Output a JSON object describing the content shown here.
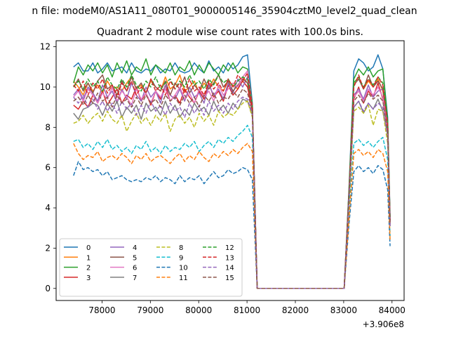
{
  "figure": {
    "suptitle": "n file: modeM0/AS1A11_080T01_9000005146_35904cztM0_level2_quad_clean",
    "offset_label": "+3.906e8"
  },
  "chart_data": {
    "type": "line",
    "title": "Quadrant 2 module wise count rates with 100.0s bins.",
    "xlabel": "",
    "ylabel": "",
    "x_offset": 390600000,
    "xlim": [
      77050,
      84250
    ],
    "ylim": [
      -0.6,
      12.3
    ],
    "xticks": [
      78000,
      79000,
      80000,
      81000,
      82000,
      83000,
      84000
    ],
    "xtick_labels": [
      "78000",
      "79000",
      "80000",
      "81000",
      "82000",
      "83000",
      "84000"
    ],
    "yticks": [
      0,
      2,
      4,
      6,
      8,
      10,
      12
    ],
    "ytick_labels": [
      "0",
      "2",
      "4",
      "6",
      "8",
      "10",
      "12"
    ],
    "grid": false,
    "legend_placement": "lower-left",
    "x": [
      77410,
      77510,
      77610,
      77710,
      77810,
      77910,
      78010,
      78110,
      78210,
      78310,
      78410,
      78510,
      78610,
      78710,
      78810,
      78910,
      79010,
      79110,
      79210,
      79310,
      79410,
      79510,
      79610,
      79710,
      79810,
      79910,
      80010,
      80110,
      80210,
      80310,
      80410,
      80510,
      80610,
      80710,
      80810,
      80910,
      81010,
      81110,
      81210,
      81310,
      81410,
      81510,
      81610,
      81710,
      81810,
      81910,
      82010,
      82110,
      82210,
      82310,
      82410,
      82510,
      82610,
      82710,
      82810,
      82910,
      83010,
      83110,
      83210,
      83310,
      83410,
      83510,
      83610,
      83710,
      83810,
      83910,
      83960
    ],
    "series": [
      {
        "name": "0",
        "color": "#1f77b4",
        "dash": "solid",
        "values": [
          11.0,
          11.2,
          10.8,
          10.8,
          11.2,
          10.7,
          10.9,
          11.2,
          10.8,
          10.9,
          11.0,
          10.7,
          11.2,
          10.8,
          10.7,
          10.9,
          10.8,
          11.1,
          10.7,
          10.9,
          10.8,
          11.2,
          10.8,
          10.7,
          10.8,
          11.2,
          10.9,
          10.7,
          11.3,
          10.8,
          11.0,
          10.7,
          11.2,
          10.9,
          11.1,
          11.5,
          11.6,
          9.2,
          0,
          0,
          0,
          0,
          0,
          0,
          0,
          0,
          0,
          0,
          0,
          0,
          0,
          0,
          0,
          0,
          0,
          0,
          0,
          5.0,
          10.8,
          11.4,
          11.2,
          10.8,
          11.0,
          11.6,
          10.9,
          8.5,
          3.6
        ]
      },
      {
        "name": "1",
        "color": "#ff7f0e",
        "dash": "solid",
        "values": [
          10.3,
          10.0,
          9.6,
          10.2,
          9.8,
          10.1,
          9.7,
          10.3,
          9.9,
          10.0,
          9.8,
          10.2,
          10.5,
          9.9,
          10.1,
          9.7,
          10.3,
          10.0,
          9.8,
          10.5,
          9.9,
          10.1,
          10.6,
          9.8,
          10.0,
          10.3,
          9.7,
          10.2,
          9.9,
          10.4,
          10.0,
          9.8,
          10.3,
          10.1,
          9.9,
          10.5,
          10.2,
          9.0,
          0,
          0,
          0,
          0,
          0,
          0,
          0,
          0,
          0,
          0,
          0,
          0,
          0,
          0,
          0,
          0,
          0,
          0,
          0,
          4.8,
          10.2,
          10.5,
          9.9,
          10.3,
          10.0,
          10.4,
          9.8,
          8.0,
          3.4
        ]
      },
      {
        "name": "2",
        "color": "#2ca02c",
        "dash": "solid",
        "values": [
          10.2,
          11.0,
          10.6,
          11.1,
          10.8,
          11.2,
          10.7,
          11.1,
          10.5,
          11.2,
          10.7,
          11.3,
          10.6,
          11.0,
          10.8,
          11.4,
          10.6,
          11.1,
          10.9,
          10.7,
          11.2,
          10.6,
          11.0,
          10.8,
          11.3,
          10.6,
          11.1,
          10.7,
          11.2,
          10.9,
          10.6,
          11.1,
          10.8,
          11.2,
          10.7,
          11.0,
          10.9,
          9.1,
          0,
          0,
          0,
          0,
          0,
          0,
          0,
          0,
          0,
          0,
          0,
          0,
          0,
          0,
          0,
          0,
          0,
          0,
          0,
          4.9,
          10.4,
          10.9,
          10.6,
          11.0,
          10.5,
          10.8,
          10.9,
          8.3,
          3.5
        ]
      },
      {
        "name": "3",
        "color": "#d62728",
        "dash": "solid",
        "values": [
          9.1,
          8.9,
          9.3,
          9.0,
          9.6,
          9.2,
          9.8,
          9.1,
          9.5,
          9.9,
          9.2,
          9.6,
          9.4,
          10.0,
          9.3,
          9.7,
          9.1,
          9.8,
          9.4,
          10.1,
          9.3,
          9.6,
          9.2,
          9.9,
          9.5,
          9.2,
          9.8,
          9.4,
          10.2,
          9.5,
          9.8,
          9.3,
          10.1,
          9.6,
          9.9,
          10.3,
          10.0,
          8.8,
          0,
          0,
          0,
          0,
          0,
          0,
          0,
          0,
          0,
          0,
          0,
          0,
          0,
          0,
          0,
          0,
          0,
          0,
          0,
          4.6,
          9.4,
          10.0,
          9.2,
          9.8,
          9.5,
          10.2,
          9.4,
          7.8,
          3.2
        ]
      },
      {
        "name": "4",
        "color": "#9467bd",
        "dash": "solid",
        "values": [
          9.6,
          9.9,
          9.4,
          10.0,
          9.7,
          9.3,
          10.1,
          9.5,
          9.8,
          9.2,
          9.9,
          9.4,
          10.2,
          9.6,
          9.3,
          10.0,
          9.5,
          9.8,
          9.2,
          10.1,
          9.6,
          9.4,
          9.9,
          9.3,
          10.0,
          9.5,
          9.7,
          9.2,
          10.1,
          9.6,
          9.9,
          9.4,
          10.2,
          9.7,
          10.4,
          10.0,
          10.5,
          9.0,
          0,
          0,
          0,
          0,
          0,
          0,
          0,
          0,
          0,
          0,
          0,
          0,
          0,
          0,
          0,
          0,
          0,
          0,
          0,
          4.7,
          9.6,
          9.9,
          9.4,
          10.1,
          9.5,
          9.8,
          9.9,
          8.0,
          3.3
        ]
      },
      {
        "name": "5",
        "color": "#8c564b",
        "dash": "solid",
        "values": [
          10.0,
          10.4,
          9.8,
          10.2,
          9.7,
          10.3,
          10.6,
          9.9,
          10.1,
          9.6,
          10.3,
          9.8,
          10.5,
          9.9,
          10.2,
          9.7,
          10.4,
          10.0,
          9.8,
          10.3,
          9.6,
          10.2,
          9.9,
          10.5,
          9.7,
          10.1,
          9.8,
          10.4,
          9.9,
          10.2,
          10.6,
          10.0,
          10.3,
          9.8,
          10.1,
          10.4,
          10.2,
          9.1,
          0,
          0,
          0,
          0,
          0,
          0,
          0,
          0,
          0,
          0,
          0,
          0,
          0,
          0,
          0,
          0,
          0,
          0,
          0,
          4.8,
          10.1,
          10.4,
          9.9,
          10.6,
          10.0,
          10.3,
          9.9,
          8.2,
          3.4
        ]
      },
      {
        "name": "6",
        "color": "#e377c2",
        "dash": "solid",
        "values": [
          9.5,
          9.8,
          9.3,
          9.9,
          9.6,
          9.2,
          9.7,
          9.4,
          10.0,
          9.3,
          9.8,
          9.5,
          9.1,
          9.9,
          9.4,
          9.7,
          9.2,
          9.8,
          9.5,
          9.9,
          9.3,
          9.6,
          10.0,
          9.4,
          9.7,
          9.2,
          9.9,
          9.5,
          9.8,
          9.3,
          10.1,
          9.6,
          9.9,
          10.2,
          10.0,
          10.5,
          10.8,
          9.0,
          0,
          0,
          0,
          0,
          0,
          0,
          0,
          0,
          0,
          0,
          0,
          0,
          0,
          0,
          0,
          0,
          0,
          0,
          0,
          4.6,
          9.5,
          9.8,
          9.3,
          9.9,
          9.6,
          10.0,
          9.5,
          7.9,
          3.3
        ]
      },
      {
        "name": "7",
        "color": "#7f7f7f",
        "dash": "solid",
        "values": [
          8.7,
          8.4,
          8.9,
          9.0,
          9.2,
          9.1,
          8.6,
          9.2,
          8.8,
          9.3,
          8.5,
          9.0,
          8.7,
          9.1,
          8.4,
          9.2,
          8.8,
          9.0,
          8.6,
          9.3,
          8.7,
          9.1,
          8.5,
          8.9,
          8.6,
          9.2,
          8.8,
          9.0,
          8.6,
          9.3,
          8.8,
          9.1,
          8.7,
          9.2,
          8.9,
          9.4,
          9.3,
          8.6,
          0,
          0,
          0,
          0,
          0,
          0,
          0,
          0,
          0,
          0,
          0,
          0,
          0,
          0,
          0,
          0,
          0,
          0,
          0,
          4.4,
          9.0,
          9.3,
          8.7,
          9.2,
          8.9,
          9.4,
          8.8,
          7.6,
          3.1
        ]
      },
      {
        "name": "8",
        "color": "#bcbd22",
        "dash": "dashed",
        "values": [
          8.2,
          8.3,
          8.6,
          8.2,
          8.5,
          8.7,
          8.3,
          8.8,
          8.4,
          8.2,
          8.6,
          7.8,
          8.3,
          8.7,
          8.2,
          8.5,
          8.1,
          8.6,
          8.3,
          8.7,
          7.8,
          8.4,
          8.6,
          8.2,
          8.5,
          8.0,
          8.7,
          8.3,
          8.6,
          8.1,
          8.8,
          8.5,
          8.7,
          8.6,
          8.9,
          9.2,
          9.3,
          8.5,
          0,
          0,
          0,
          0,
          0,
          0,
          0,
          0,
          0,
          0,
          0,
          0,
          0,
          0,
          0,
          0,
          0,
          0,
          0,
          4.2,
          8.8,
          9.0,
          8.7,
          9.1,
          8.1,
          8.9,
          8.8,
          7.2,
          3.0
        ]
      },
      {
        "name": "9",
        "color": "#17becf",
        "dash": "dashed",
        "values": [
          7.3,
          7.4,
          7.0,
          7.2,
          6.9,
          7.3,
          7.0,
          7.4,
          6.9,
          7.1,
          6.8,
          7.0,
          6.7,
          7.1,
          6.9,
          7.3,
          6.8,
          7.0,
          6.7,
          7.1,
          6.8,
          7.0,
          6.9,
          7.2,
          7.0,
          7.3,
          6.8,
          7.1,
          7.3,
          7.0,
          7.4,
          7.2,
          7.5,
          7.3,
          7.6,
          7.8,
          8.1,
          7.5,
          0,
          0,
          0,
          0,
          0,
          0,
          0,
          0,
          0,
          0,
          0,
          0,
          0,
          0,
          0,
          0,
          0,
          0,
          0,
          3.8,
          7.2,
          7.4,
          7.1,
          7.3,
          7.0,
          7.3,
          7.5,
          6.4,
          2.6
        ]
      },
      {
        "name": "10",
        "color": "#1f77b4",
        "dash": "dashed",
        "values": [
          5.6,
          6.3,
          5.9,
          6.0,
          5.8,
          5.9,
          5.6,
          5.8,
          5.4,
          5.5,
          5.6,
          5.4,
          5.3,
          5.4,
          5.3,
          5.5,
          5.4,
          5.6,
          5.3,
          5.5,
          5.4,
          5.2,
          5.6,
          5.3,
          5.5,
          5.4,
          5.6,
          5.2,
          5.5,
          5.8,
          5.5,
          5.6,
          5.9,
          5.7,
          5.8,
          6.0,
          5.9,
          5.4,
          0,
          0,
          0,
          0,
          0,
          0,
          0,
          0,
          0,
          0,
          0,
          0,
          0,
          0,
          0,
          0,
          0,
          0,
          0,
          3.2,
          5.8,
          6.1,
          5.8,
          6.0,
          5.7,
          6.1,
          5.9,
          4.9,
          2.1
        ]
      },
      {
        "name": "11",
        "color": "#ff7f0e",
        "dash": "dashed",
        "values": [
          7.2,
          6.7,
          6.4,
          6.6,
          6.5,
          6.8,
          6.3,
          6.5,
          6.6,
          6.4,
          6.7,
          6.5,
          6.2,
          6.6,
          6.4,
          6.7,
          6.3,
          6.5,
          6.6,
          6.4,
          6.2,
          6.5,
          6.7,
          6.3,
          6.6,
          6.4,
          6.8,
          6.5,
          6.3,
          6.7,
          6.5,
          6.8,
          6.6,
          6.9,
          6.7,
          7.0,
          7.2,
          6.8,
          0,
          0,
          0,
          0,
          0,
          0,
          0,
          0,
          0,
          0,
          0,
          0,
          0,
          0,
          0,
          0,
          0,
          0,
          0,
          3.5,
          6.7,
          6.9,
          6.6,
          6.8,
          6.5,
          6.9,
          6.7,
          5.8,
          2.4
        ]
      },
      {
        "name": "12",
        "color": "#2ca02c",
        "dash": "dashed",
        "values": [
          10.0,
          10.3,
          9.9,
          10.4,
          10.0,
          10.3,
          9.8,
          10.5,
          10.1,
          9.9,
          10.4,
          10.0,
          10.6,
          10.1,
          9.8,
          10.3,
          10.0,
          10.5,
          9.9,
          10.2,
          10.4,
          9.9,
          10.3,
          10.0,
          10.6,
          10.1,
          10.3,
          9.9,
          10.4,
          10.1,
          10.6,
          10.2,
          10.4,
          10.0,
          10.3,
          10.5,
          10.4,
          9.1,
          0,
          0,
          0,
          0,
          0,
          0,
          0,
          0,
          0,
          0,
          0,
          0,
          0,
          0,
          0,
          0,
          0,
          0,
          0,
          4.8,
          10.2,
          10.5,
          10.0,
          10.4,
          10.1,
          10.5,
          10.2,
          8.3,
          3.4
        ]
      },
      {
        "name": "13",
        "color": "#d62728",
        "dash": "dashed",
        "values": [
          10.1,
          9.8,
          10.3,
          9.6,
          10.2,
          9.9,
          10.4,
          9.7,
          10.1,
          9.5,
          10.2,
          9.8,
          10.3,
          9.6,
          10.0,
          9.7,
          10.4,
          9.8,
          10.1,
          9.6,
          10.3,
          9.9,
          10.2,
          9.7,
          10.4,
          9.8,
          10.0,
          9.6,
          10.3,
          9.9,
          10.2,
          9.8,
          10.4,
          10.0,
          10.6,
          10.3,
          10.7,
          9.0,
          0,
          0,
          0,
          0,
          0,
          0,
          0,
          0,
          0,
          0,
          0,
          0,
          0,
          0,
          0,
          0,
          0,
          0,
          0,
          4.7,
          10.0,
          10.6,
          9.9,
          10.4,
          10.0,
          10.5,
          10.1,
          8.1,
          3.3
        ]
      },
      {
        "name": "14",
        "color": "#9467bd",
        "dash": "dashed",
        "values": [
          9.5,
          9.2,
          9.6,
          9.0,
          9.4,
          8.9,
          9.3,
          8.8,
          9.2,
          8.7,
          9.3,
          8.9,
          9.2,
          8.6,
          9.1,
          8.7,
          9.3,
          8.8,
          9.1,
          8.6,
          9.2,
          8.8,
          9.0,
          8.5,
          9.2,
          8.7,
          9.1,
          8.6,
          9.3,
          8.8,
          9.1,
          8.7,
          9.2,
          8.9,
          9.3,
          9.5,
          9.4,
          8.7,
          0,
          0,
          0,
          0,
          0,
          0,
          0,
          0,
          0,
          0,
          0,
          0,
          0,
          0,
          0,
          0,
          0,
          0,
          0,
          4.5,
          9.0,
          9.3,
          8.8,
          9.2,
          8.9,
          9.2,
          9.0,
          7.6,
          3.1
        ]
      },
      {
        "name": "15",
        "color": "#8c564b",
        "dash": "dashed",
        "values": [
          9.3,
          9.5,
          9.1,
          9.6,
          9.2,
          9.7,
          9.3,
          9.5,
          9.0,
          9.6,
          9.2,
          9.4,
          9.0,
          9.5,
          9.1,
          9.6,
          9.2,
          9.4,
          9.0,
          9.6,
          9.3,
          9.5,
          9.1,
          9.6,
          9.2,
          9.5,
          9.0,
          9.6,
          9.3,
          9.7,
          9.2,
          9.5,
          9.4,
          9.8,
          9.5,
          9.9,
          9.7,
          8.8,
          0,
          0,
          0,
          0,
          0,
          0,
          0,
          0,
          0,
          0,
          0,
          0,
          0,
          0,
          0,
          0,
          0,
          0,
          0,
          4.6,
          9.3,
          9.6,
          9.2,
          9.7,
          9.4,
          9.6,
          9.3,
          7.8,
          3.2
        ]
      }
    ]
  }
}
